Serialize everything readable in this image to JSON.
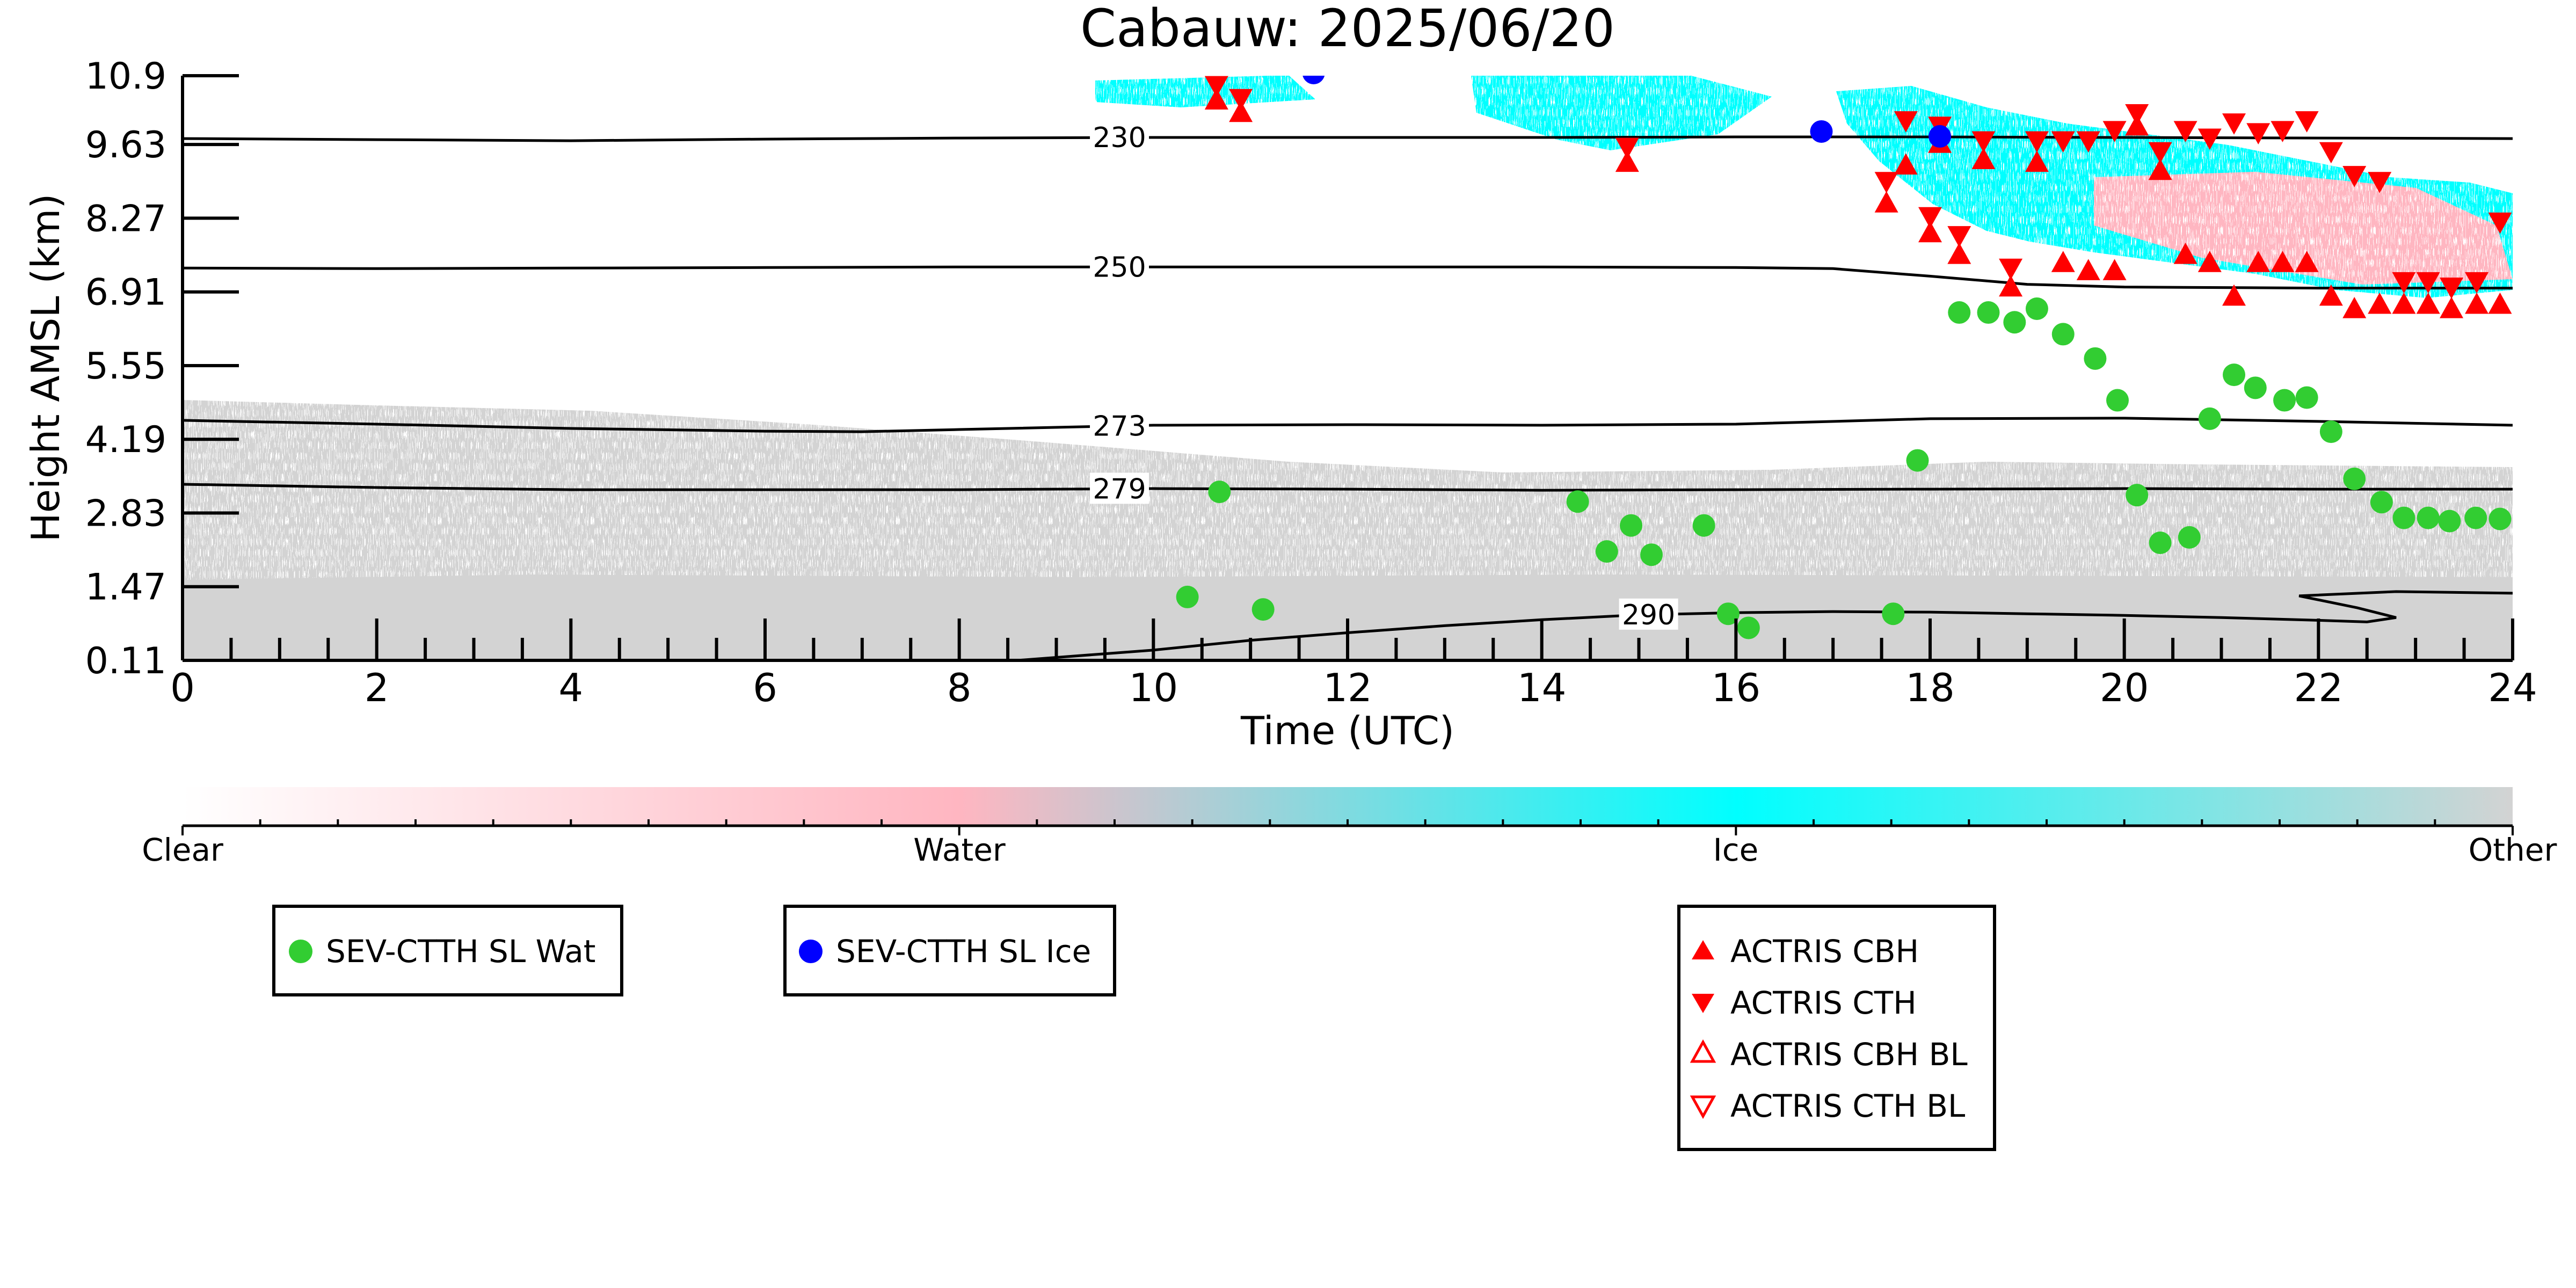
{
  "chart_data": {
    "type": "scatter",
    "title": "Cabauw: 2025/06/20",
    "xlabel": "Time (UTC)",
    "ylabel": "Height AMSL (km)",
    "xlim": [
      0,
      24
    ],
    "ylim": [
      0.11,
      10.9
    ],
    "x_ticks": [
      "0",
      "2",
      "4",
      "6",
      "8",
      "10",
      "12",
      "14",
      "16",
      "18",
      "20",
      "22",
      "24"
    ],
    "y_ticks": [
      "0.11",
      "1.47",
      "2.83",
      "4.19",
      "5.55",
      "6.91",
      "8.27",
      "9.63",
      "10.9"
    ],
    "colorbar": {
      "labels": [
        "Clear",
        "Water",
        "Ice",
        "Other"
      ],
      "colors": [
        "#ffffff",
        "#ffb6c1",
        "#00ffff",
        "#d3d3d3"
      ]
    },
    "isotherms": [
      {
        "label": "230",
        "x": [
          0,
          2,
          4,
          6,
          8,
          10,
          12,
          14,
          16,
          18,
          20,
          22,
          24
        ],
        "y": [
          9.74,
          9.72,
          9.7,
          9.73,
          9.75,
          9.76,
          9.76,
          9.76,
          9.77,
          9.77,
          9.76,
          9.75,
          9.74
        ]
      },
      {
        "label": "250",
        "x": [
          0,
          2,
          4,
          6,
          8,
          10,
          12,
          14,
          16,
          17,
          18,
          19,
          20,
          22,
          24
        ],
        "y": [
          7.35,
          7.34,
          7.35,
          7.36,
          7.37,
          7.37,
          7.37,
          7.37,
          7.36,
          7.34,
          7.2,
          7.05,
          7.0,
          6.98,
          6.98
        ]
      },
      {
        "label": "273",
        "x": [
          0,
          2,
          4,
          6,
          7,
          8,
          10,
          12,
          14,
          16,
          18,
          20,
          21,
          22,
          24
        ],
        "y": [
          4.54,
          4.47,
          4.39,
          4.34,
          4.33,
          4.37,
          4.45,
          4.46,
          4.45,
          4.47,
          4.57,
          4.58,
          4.55,
          4.52,
          4.45
        ]
      },
      {
        "label": "279",
        "x": [
          0,
          2,
          4,
          6,
          8,
          10,
          12,
          14,
          16,
          18,
          20,
          22,
          24
        ],
        "y": [
          3.36,
          3.3,
          3.26,
          3.26,
          3.26,
          3.28,
          3.27,
          3.25,
          3.26,
          3.27,
          3.28,
          3.27,
          3.27
        ]
      },
      {
        "label": "290",
        "x": [
          8.6,
          10,
          11,
          12,
          13,
          14,
          15,
          16,
          17,
          18,
          19,
          20,
          21,
          22,
          22.5,
          22.8,
          22.4,
          21.8,
          22.8,
          24
        ],
        "y": [
          0.11,
          0.3,
          0.48,
          0.62,
          0.75,
          0.86,
          0.95,
          0.99,
          1.01,
          1.0,
          0.97,
          0.94,
          0.9,
          0.85,
          0.82,
          0.9,
          1.08,
          1.3,
          1.38,
          1.35
        ]
      }
    ],
    "series": [
      {
        "name": "SEV-CTTH SL Wat",
        "color": "#32cd32",
        "marker": "circle",
        "x": [
          10.35,
          10.68,
          11.13,
          14.37,
          14.67,
          14.92,
          15.13,
          15.67,
          15.92,
          16.13,
          17.62,
          17.87,
          18.3,
          18.6,
          18.87,
          19.1,
          19.37,
          19.7,
          19.93,
          20.13,
          20.37,
          20.67,
          20.88,
          21.13,
          21.35,
          21.65,
          21.88,
          22.13,
          22.37,
          22.65,
          22.88,
          23.13,
          23.35,
          23.62,
          23.87
        ],
        "y": [
          1.28,
          3.22,
          1.05,
          3.04,
          2.12,
          2.6,
          2.06,
          2.6,
          0.97,
          0.71,
          0.97,
          3.8,
          6.53,
          6.53,
          6.35,
          6.6,
          6.13,
          5.68,
          4.91,
          3.16,
          2.28,
          2.38,
          4.57,
          5.38,
          5.14,
          4.91,
          4.96,
          4.33,
          3.46,
          3.03,
          2.74,
          2.74,
          2.68,
          2.74,
          2.72
        ]
      },
      {
        "name": "SEV-CTTH SL Ice",
        "color": "#0000ff",
        "marker": "circle",
        "x": [
          11.65,
          16.88,
          18.1
        ],
        "y": [
          10.95,
          9.87,
          9.78
        ]
      }
    ],
    "actris": {
      "x": [
        10.65,
        10.9,
        14.88,
        17.55,
        17.75,
        18.0,
        18.1,
        18.3,
        18.55,
        18.83,
        19.1,
        19.37,
        19.63,
        19.9,
        20.13,
        20.37,
        20.63,
        20.88,
        21.13,
        21.38,
        21.63,
        21.88,
        22.13,
        22.37,
        22.63,
        22.88,
        23.13,
        23.37,
        23.63,
        23.87
      ],
      "cbh": [
        10.45,
        10.22,
        9.3,
        8.55,
        9.25,
        8.0,
        9.65,
        7.6,
        9.35,
        7.0,
        9.3,
        7.45,
        7.3,
        7.3,
        9.97,
        9.15,
        7.6,
        7.45,
        6.83,
        7.45,
        7.45,
        7.45,
        6.83,
        6.6,
        6.68,
        6.68,
        6.68,
        6.6,
        6.68,
        6.68
      ],
      "cth": [
        10.72,
        10.48,
        9.58,
        8.95,
        10.07,
        8.3,
        9.97,
        7.95,
        9.7,
        7.35,
        9.7,
        9.7,
        9.7,
        9.89,
        10.2,
        9.5,
        9.89,
        9.75,
        10.03,
        9.85,
        9.89,
        10.07,
        9.5,
        9.06,
        8.95,
        7.1,
        7.1,
        7.0,
        7.1,
        8.2
      ]
    }
  },
  "legend": {
    "sev": [
      {
        "label": "SEV-CTTH SL Wat",
        "color": "#32cd32"
      },
      {
        "label": "SEV-CTTH SL Ice",
        "color": "#0000ff"
      }
    ],
    "actris": [
      {
        "label": "ACTRIS CBH",
        "color": "#ff0000"
      },
      {
        "label": "ACTRIS CTH",
        "color": "#ff0000"
      },
      {
        "label": "ACTRIS CBH BL",
        "color": "#ff0000"
      },
      {
        "label": "ACTRIS CTH BL",
        "color": "#ff0000"
      }
    ]
  }
}
